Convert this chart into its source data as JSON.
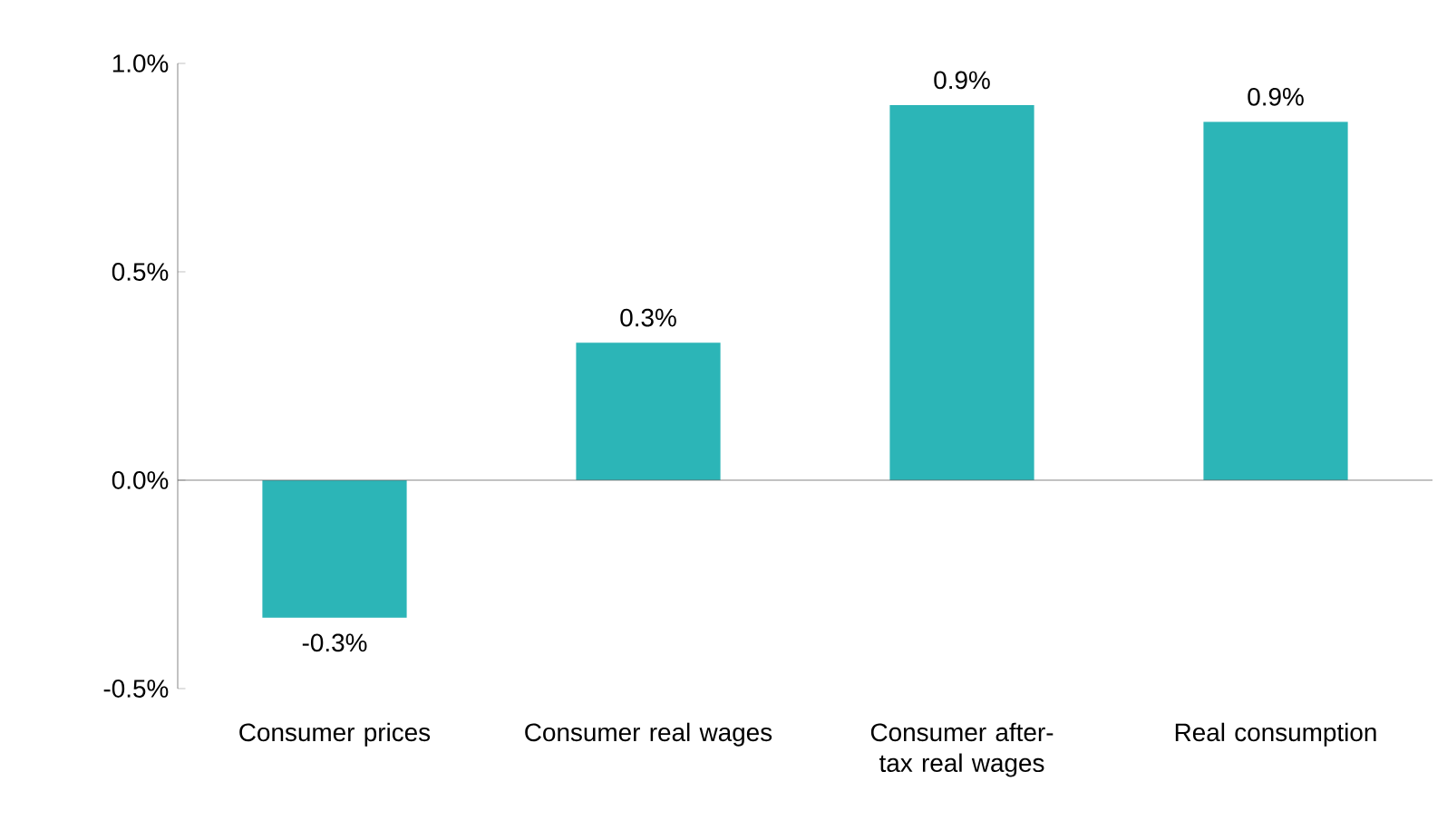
{
  "chart_data": {
    "type": "bar",
    "categories": [
      "Consumer prices",
      "Consumer real wages",
      "Consumer after-tax real wages",
      "Real consumption"
    ],
    "values": [
      -0.33,
      0.33,
      0.9,
      0.86
    ],
    "value_labels": [
      "-0.3%",
      "0.3%",
      "0.9%",
      "0.9%"
    ],
    "color": "#2cb5b7",
    "ylim": [
      -0.5,
      1.0
    ],
    "yticks": [
      {
        "value": -0.5,
        "label": "-0.5%"
      },
      {
        "value": 0.0,
        "label": "0.0%"
      },
      {
        "value": 0.5,
        "label": "0.5%"
      },
      {
        "value": 1.0,
        "label": "1.0%"
      }
    ]
  }
}
